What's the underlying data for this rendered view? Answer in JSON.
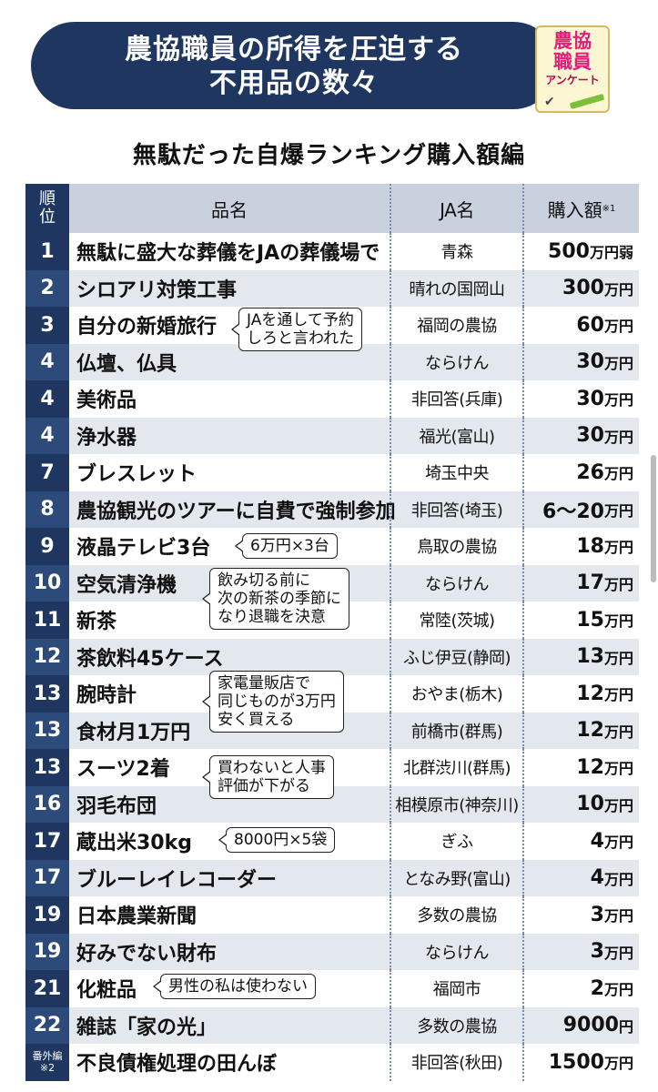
{
  "header": {
    "title_line1": "農協職員の所得を圧迫する",
    "title_line2": "不用品の数々",
    "badge_line1": "農協",
    "badge_line2": "職員",
    "badge_line3": "アンケート"
  },
  "subtitle": "無駄だった自爆ランキング購入額編",
  "columns": {
    "rank_top": "順",
    "rank_bottom": "位",
    "name": "品名",
    "ja": "JA名",
    "amount": "購入額",
    "amount_note": "※1"
  },
  "rows": [
    {
      "rank": "1",
      "name": "無駄に盛大な葬儀をJAの葬儀場で",
      "ja": "青森",
      "amount": "500",
      "unit": "万円弱"
    },
    {
      "rank": "2",
      "name": "シロアリ対策工事",
      "ja": "晴れの国岡山",
      "amount": "300",
      "unit": "万円"
    },
    {
      "rank": "3",
      "name": "自分の新婚旅行",
      "ja": "福岡の農協",
      "amount": "60",
      "unit": "万円"
    },
    {
      "rank": "4",
      "name": "仏壇、仏具",
      "ja": "ならけん",
      "amount": "30",
      "unit": "万円"
    },
    {
      "rank": "4",
      "name": "美術品",
      "ja": "非回答(兵庫)",
      "amount": "30",
      "unit": "万円"
    },
    {
      "rank": "4",
      "name": "浄水器",
      "ja": "福光(富山)",
      "amount": "30",
      "unit": "万円"
    },
    {
      "rank": "7",
      "name": "ブレスレット",
      "ja": "埼玉中央",
      "amount": "26",
      "unit": "万円"
    },
    {
      "rank": "8",
      "name": "農協観光のツアーに自費で強制参加",
      "ja": "非回答(埼玉)",
      "amount": "6〜20",
      "unit": "万円"
    },
    {
      "rank": "9",
      "name": "液晶テレビ3台",
      "ja": "鳥取の農協",
      "amount": "18",
      "unit": "万円"
    },
    {
      "rank": "10",
      "name": "空気清浄機",
      "ja": "ならけん",
      "amount": "17",
      "unit": "万円"
    },
    {
      "rank": "11",
      "name": "新茶",
      "ja": "常陸(茨城)",
      "amount": "15",
      "unit": "万円"
    },
    {
      "rank": "12",
      "name": "茶飲料45ケース",
      "ja": "ふじ伊豆(静岡)",
      "amount": "13",
      "unit": "万円"
    },
    {
      "rank": "13",
      "name": "腕時計",
      "ja": "おやま(栃木)",
      "amount": "12",
      "unit": "万円"
    },
    {
      "rank": "13",
      "name": "食材月1万円",
      "ja": "前橋市(群馬)",
      "amount": "12",
      "unit": "万円"
    },
    {
      "rank": "13",
      "name": "スーツ2着",
      "ja": "北群渋川(群馬)",
      "amount": "12",
      "unit": "万円"
    },
    {
      "rank": "16",
      "name": "羽毛布団",
      "ja": "相模原市(神奈川)",
      "amount": "10",
      "unit": "万円"
    },
    {
      "rank": "17",
      "name": "蔵出米30kg",
      "ja": "ぎふ",
      "amount": "4",
      "unit": "万円"
    },
    {
      "rank": "17",
      "name": "ブルーレイレコーダー",
      "ja": "となみ野(富山)",
      "amount": "4",
      "unit": "万円"
    },
    {
      "rank": "19",
      "name": "日本農業新聞",
      "ja": "多数の農協",
      "amount": "3",
      "unit": "万円"
    },
    {
      "rank": "19",
      "name": "好みでない財布",
      "ja": "ならけん",
      "amount": "3",
      "unit": "万円"
    },
    {
      "rank": "21",
      "name": "化粧品",
      "ja": "福岡市",
      "amount": "2",
      "unit": "万円"
    },
    {
      "rank": "22",
      "name": "雑誌「家の光」",
      "ja": "多数の農協",
      "amount": "9000",
      "unit": "円"
    }
  ],
  "special_row": {
    "rank_line1": "番外編",
    "rank_line2": "※2",
    "name": "不良債権処理の田んぼ",
    "ja": "非回答(秋田)",
    "amount": "1500",
    "unit": "万円"
  },
  "callouts": {
    "c1_line1": "JAを通して予約",
    "c1_line2": "しろと言われた",
    "c2": "6万円×3台",
    "c3_line1": "飲み切る前に",
    "c3_line2": "次の新茶の季節に",
    "c3_line3": "なり退職を決意",
    "c4_line1": "家電量販店で",
    "c4_line2": "同じものが3万円",
    "c4_line3": "安く買える",
    "c5_line1": "買わないと人事",
    "c5_line2": "評価が下がる",
    "c6": "8000円×5袋",
    "c7": "男性の私は使わない"
  }
}
